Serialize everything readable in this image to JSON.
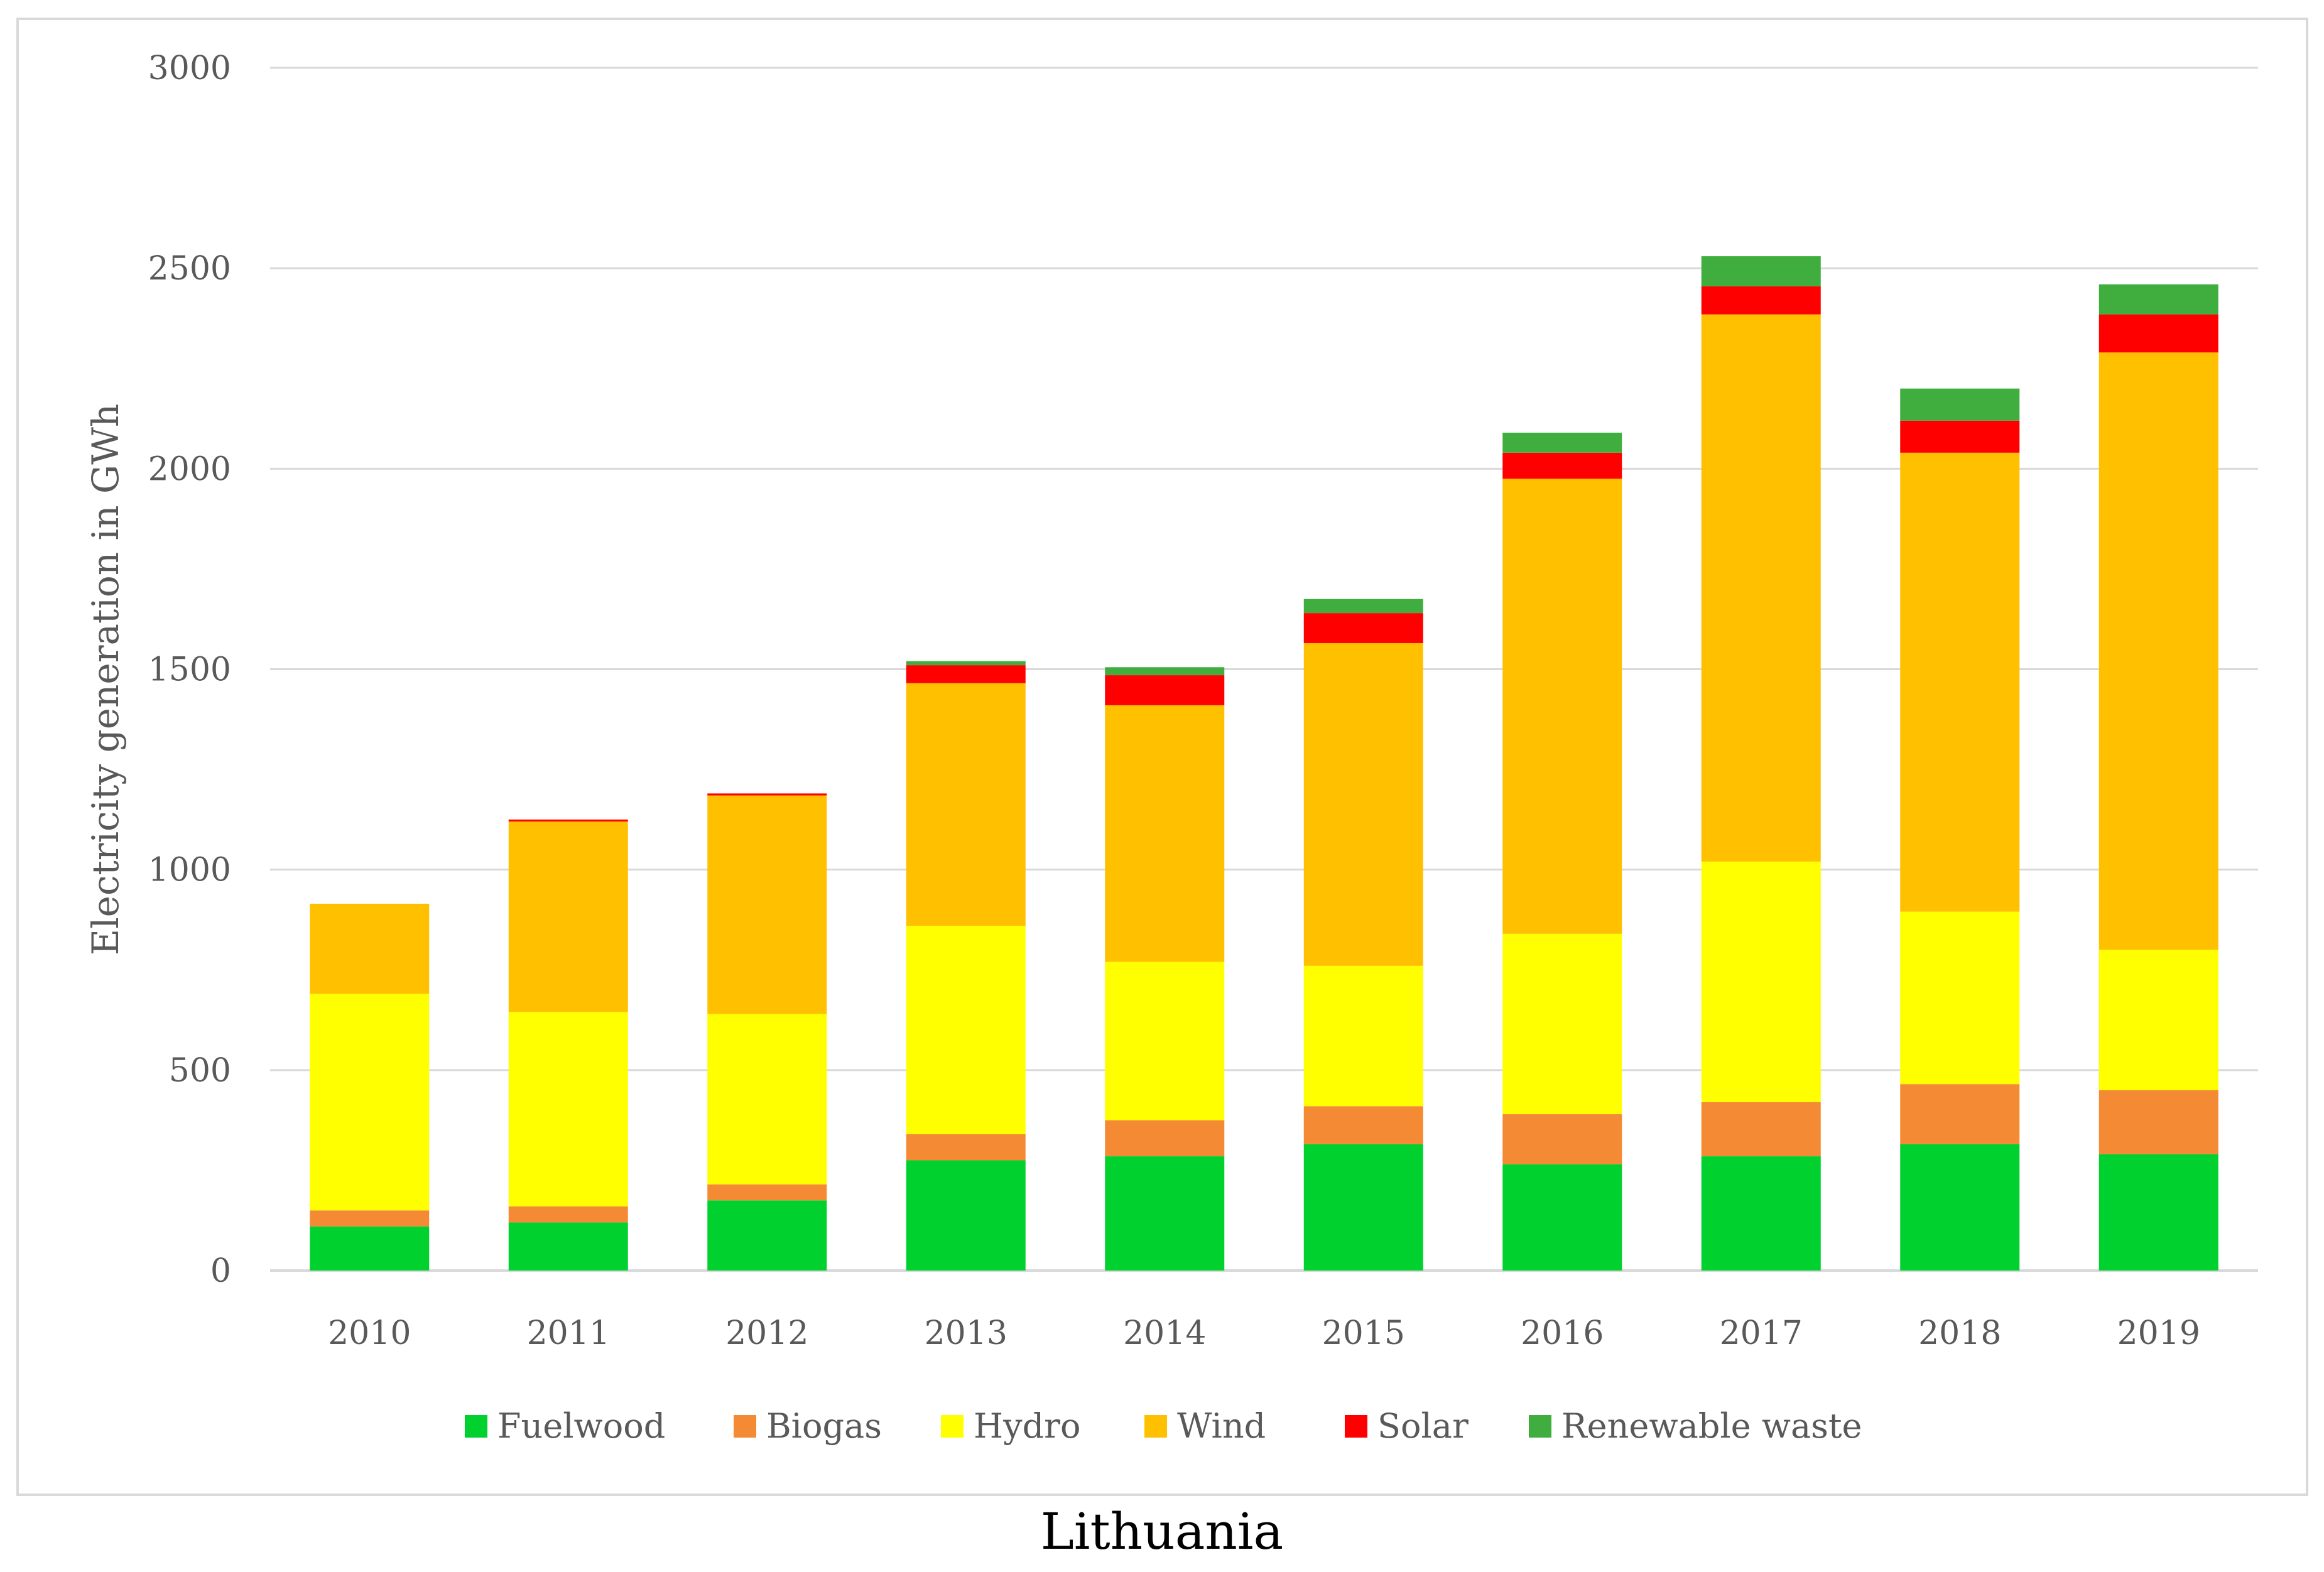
{
  "chart_data": {
    "type": "bar",
    "stacked": true,
    "categories": [
      "2010",
      "2011",
      "2012",
      "2013",
      "2014",
      "2015",
      "2016",
      "2017",
      "2018",
      "2019"
    ],
    "series": [
      {
        "name": "Fuelwood",
        "color": "#00d12f",
        "values": [
          110,
          120,
          175,
          275,
          285,
          315,
          265,
          285,
          315,
          290
        ]
      },
      {
        "name": "Biogas",
        "color": "#f58a34",
        "values": [
          40,
          40,
          40,
          65,
          90,
          95,
          125,
          135,
          150,
          160
        ]
      },
      {
        "name": "Hydro",
        "color": "#ffff00",
        "values": [
          540,
          485,
          425,
          520,
          395,
          350,
          450,
          600,
          430,
          350
        ]
      },
      {
        "name": "Wind",
        "color": "#ffc000",
        "values": [
          225,
          475,
          545,
          605,
          640,
          805,
          1135,
          1365,
          1145,
          1490
        ]
      },
      {
        "name": "Solar",
        "color": "#ff0000",
        "values": [
          0,
          5,
          5,
          45,
          75,
          75,
          65,
          70,
          80,
          95
        ]
      },
      {
        "name": "Renewable waste",
        "color": "#3fae3f",
        "values": [
          0,
          0,
          0,
          10,
          20,
          35,
          50,
          75,
          80,
          75
        ]
      }
    ],
    "title": "",
    "xlabel": "",
    "ylabel": "Electricity generation in GWh",
    "ylim": [
      0,
      3000
    ],
    "yticks": [
      "0",
      "500",
      "1000",
      "1500",
      "2000",
      "2500",
      "3000"
    ],
    "grid": true,
    "legend": "bottom",
    "gridline_color": "#d9d9d9",
    "axis_color": "#d9d9d9"
  },
  "caption": "Lithuania"
}
